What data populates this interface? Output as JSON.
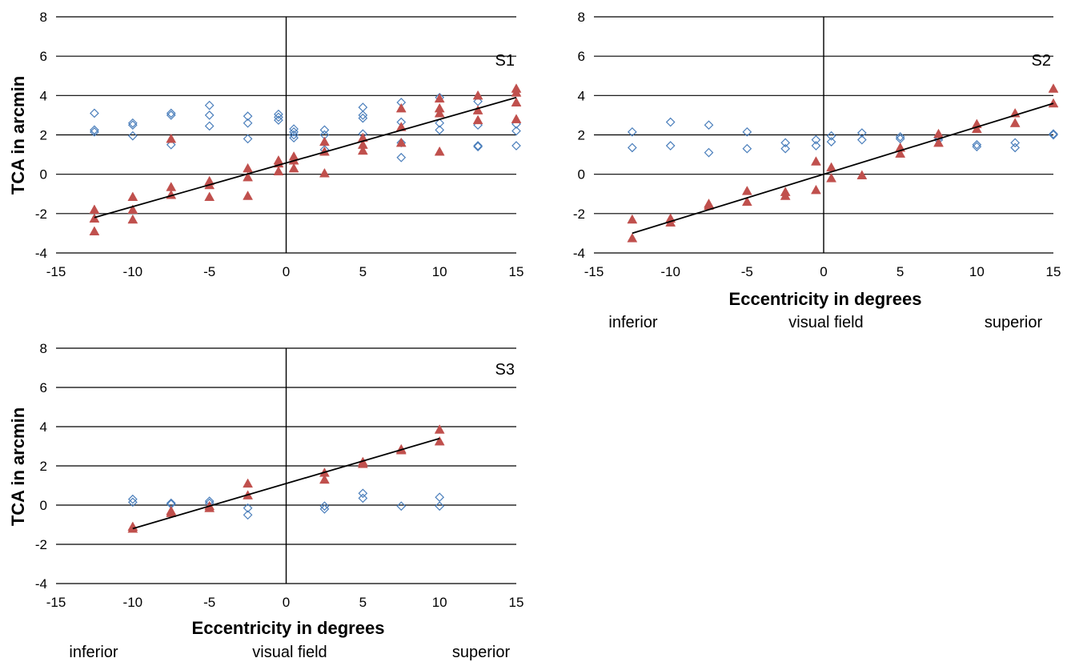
{
  "chart_data": [
    {
      "type": "scatter",
      "panel_label": "S1",
      "ylabel": "TCA in arcmin",
      "xlabel": "",
      "field_labels": [
        "",
        "",
        ""
      ],
      "xlim": [
        -15,
        15
      ],
      "ylim": [
        -4,
        8
      ],
      "x_ticks": [
        -15,
        -10,
        -5,
        0,
        5,
        10,
        15
      ],
      "y_ticks": [
        -4,
        -2,
        0,
        2,
        4,
        6,
        8
      ],
      "grid": "horizontal",
      "colors": {
        "series_open": "#4a7ebb",
        "series_filled": "#c0504d",
        "fit": "#000000"
      },
      "series": [
        {
          "marker": "diamond-open",
          "color": "#4a7ebb",
          "points": [
            [
              -12.5,
              3.1
            ],
            [
              -12.5,
              2.25
            ],
            [
              -12.5,
              2.15
            ],
            [
              -10,
              2.6
            ],
            [
              -10,
              2.5
            ],
            [
              -10,
              1.95
            ],
            [
              -7.5,
              3.1
            ],
            [
              -7.5,
              3.0
            ],
            [
              -7.5,
              1.5
            ],
            [
              -5,
              3.5
            ],
            [
              -5,
              3.0
            ],
            [
              -5,
              2.45
            ],
            [
              -2.5,
              2.95
            ],
            [
              -2.5,
              2.6
            ],
            [
              -2.5,
              1.8
            ],
            [
              -0.5,
              3.05
            ],
            [
              -0.5,
              2.9
            ],
            [
              -0.5,
              2.75
            ],
            [
              0.5,
              2.3
            ],
            [
              0.5,
              2.15
            ],
            [
              0.5,
              2.0
            ],
            [
              0.5,
              1.85
            ],
            [
              2.5,
              2.25
            ],
            [
              2.5,
              2.0
            ],
            [
              2.5,
              1.25
            ],
            [
              5,
              3.4
            ],
            [
              5,
              3.0
            ],
            [
              5,
              2.85
            ],
            [
              5,
              2.05
            ],
            [
              7.5,
              3.65
            ],
            [
              7.5,
              2.65
            ],
            [
              7.5,
              1.6
            ],
            [
              7.5,
              0.85
            ],
            [
              10,
              3.9
            ],
            [
              10,
              2.6
            ],
            [
              10,
              2.25
            ],
            [
              12.5,
              3.7
            ],
            [
              12.5,
              2.5
            ],
            [
              12.5,
              1.45
            ],
            [
              12.5,
              1.4
            ],
            [
              15,
              2.55
            ],
            [
              15,
              2.2
            ],
            [
              15,
              1.45
            ]
          ]
        },
        {
          "marker": "triangle-filled",
          "color": "#c0504d",
          "points": [
            [
              -12.5,
              -1.8
            ],
            [
              -12.5,
              -2.25
            ],
            [
              -12.5,
              -2.9
            ],
            [
              -10,
              -1.15
            ],
            [
              -10,
              -1.8
            ],
            [
              -10,
              -2.3
            ],
            [
              -7.5,
              1.8
            ],
            [
              -7.5,
              -0.65
            ],
            [
              -7.5,
              -1.05
            ],
            [
              -5,
              -0.35
            ],
            [
              -5,
              -0.55
            ],
            [
              -5,
              -1.15
            ],
            [
              -2.5,
              0.3
            ],
            [
              -2.5,
              -0.15
            ],
            [
              -2.5,
              -1.1
            ],
            [
              -0.5,
              0.7
            ],
            [
              -0.5,
              0.55
            ],
            [
              -0.5,
              0.15
            ],
            [
              0.5,
              0.9
            ],
            [
              0.5,
              0.7
            ],
            [
              0.5,
              0.3
            ],
            [
              2.5,
              1.65
            ],
            [
              2.5,
              1.15
            ],
            [
              2.5,
              0.05
            ],
            [
              5,
              1.85
            ],
            [
              5,
              1.5
            ],
            [
              5,
              1.2
            ],
            [
              7.5,
              3.35
            ],
            [
              7.5,
              2.4
            ],
            [
              7.5,
              1.6
            ],
            [
              10,
              3.85
            ],
            [
              10,
              3.35
            ],
            [
              10,
              3.1
            ],
            [
              10,
              1.15
            ],
            [
              12.5,
              4.0
            ],
            [
              12.5,
              3.25
            ],
            [
              12.5,
              2.75
            ],
            [
              15,
              4.35
            ],
            [
              15,
              4.15
            ],
            [
              15,
              3.65
            ],
            [
              15,
              2.8
            ]
          ]
        }
      ],
      "fit_line": [
        [
          -12.5,
          -2.2
        ],
        [
          15,
          3.9
        ]
      ]
    },
    {
      "type": "scatter",
      "panel_label": "S2",
      "ylabel": "",
      "xlabel": "Eccentricity in degrees",
      "field_labels": [
        "inferior",
        "visual field",
        "superior"
      ],
      "xlim": [
        -15,
        15
      ],
      "ylim": [
        -4,
        8
      ],
      "x_ticks": [
        -15,
        -10,
        -5,
        0,
        5,
        10,
        15
      ],
      "y_ticks": [
        -4,
        -2,
        0,
        2,
        4,
        6,
        8
      ],
      "grid": "horizontal",
      "colors": {
        "series_open": "#4a7ebb",
        "series_filled": "#c0504d",
        "fit": "#000000"
      },
      "series": [
        {
          "marker": "diamond-open",
          "color": "#4a7ebb",
          "points": [
            [
              -12.5,
              2.15
            ],
            [
              -12.5,
              1.35
            ],
            [
              -10,
              2.65
            ],
            [
              -10,
              1.45
            ],
            [
              -7.5,
              2.5
            ],
            [
              -7.5,
              1.1
            ],
            [
              -5,
              2.15
            ],
            [
              -5,
              1.3
            ],
            [
              -2.5,
              1.6
            ],
            [
              -2.5,
              1.3
            ],
            [
              -0.5,
              1.75
            ],
            [
              -0.5,
              1.45
            ],
            [
              0.5,
              1.95
            ],
            [
              0.5,
              1.65
            ],
            [
              2.5,
              2.1
            ],
            [
              2.5,
              1.75
            ],
            [
              5,
              1.9
            ],
            [
              5,
              1.8
            ],
            [
              7.5,
              1.85
            ],
            [
              7.5,
              1.75
            ],
            [
              10,
              1.5
            ],
            [
              10,
              1.4
            ],
            [
              12.5,
              1.6
            ],
            [
              12.5,
              1.35
            ],
            [
              15,
              2.05
            ],
            [
              15,
              2.0
            ]
          ]
        },
        {
          "marker": "triangle-filled",
          "color": "#c0504d",
          "points": [
            [
              -12.5,
              -2.3
            ],
            [
              -12.5,
              -3.25
            ],
            [
              -10,
              -2.25
            ],
            [
              -10,
              -2.45
            ],
            [
              -7.5,
              -1.5
            ],
            [
              -7.5,
              -1.6
            ],
            [
              -5,
              -0.85
            ],
            [
              -5,
              -1.4
            ],
            [
              -2.5,
              -0.9
            ],
            [
              -2.5,
              -1.1
            ],
            [
              -0.5,
              0.65
            ],
            [
              -0.5,
              -0.8
            ],
            [
              0.5,
              0.35
            ],
            [
              0.5,
              -0.2
            ],
            [
              2.5,
              -0.05
            ],
            [
              5,
              1.35
            ],
            [
              5,
              1.05
            ],
            [
              7.5,
              2.05
            ],
            [
              7.5,
              1.6
            ],
            [
              10,
              2.55
            ],
            [
              10,
              2.3
            ],
            [
              12.5,
              3.1
            ],
            [
              12.5,
              2.6
            ],
            [
              15,
              4.35
            ],
            [
              15,
              3.6
            ]
          ]
        }
      ],
      "fit_line": [
        [
          -12.5,
          -3.0
        ],
        [
          15,
          3.6
        ]
      ]
    },
    {
      "type": "scatter",
      "panel_label": "S3",
      "ylabel": "TCA in arcmin",
      "xlabel": "Eccentricity in degrees",
      "field_labels": [
        "inferior",
        "visual field",
        "superior"
      ],
      "xlim": [
        -15,
        15
      ],
      "ylim": [
        -4,
        8
      ],
      "x_ticks": [
        -15,
        -10,
        -5,
        0,
        5,
        10,
        15
      ],
      "y_ticks": [
        -4,
        -2,
        0,
        2,
        4,
        6,
        8
      ],
      "grid": "horizontal",
      "colors": {
        "series_open": "#4a7ebb",
        "series_filled": "#c0504d",
        "fit": "#000000"
      },
      "series": [
        {
          "marker": "diamond-open",
          "color": "#4a7ebb",
          "points": [
            [
              -10,
              0.3
            ],
            [
              -10,
              0.15
            ],
            [
              -7.5,
              0.1
            ],
            [
              -7.5,
              0.05
            ],
            [
              -5,
              0.2
            ],
            [
              -5,
              0.1
            ],
            [
              -2.5,
              -0.15
            ],
            [
              -2.5,
              -0.5
            ],
            [
              2.5,
              -0.05
            ],
            [
              2.5,
              -0.2
            ],
            [
              5,
              0.6
            ],
            [
              5,
              0.35
            ],
            [
              7.5,
              -0.05
            ],
            [
              10,
              0.4
            ],
            [
              10,
              -0.05
            ]
          ]
        },
        {
          "marker": "triangle-filled",
          "color": "#c0504d",
          "points": [
            [
              -10,
              -1.1
            ],
            [
              -10,
              -1.2
            ],
            [
              -7.5,
              -0.3
            ],
            [
              -7.5,
              -0.4
            ],
            [
              -5,
              -0.05
            ],
            [
              -5,
              -0.15
            ],
            [
              -2.5,
              1.1
            ],
            [
              -2.5,
              0.5
            ],
            [
              2.5,
              1.65
            ],
            [
              2.5,
              1.3
            ],
            [
              5,
              2.2
            ],
            [
              5,
              2.1
            ],
            [
              7.5,
              2.85
            ],
            [
              7.5,
              2.8
            ],
            [
              10,
              3.85
            ],
            [
              10,
              3.25
            ]
          ]
        }
      ],
      "fit_line": [
        [
          -10,
          -1.2
        ],
        [
          10,
          3.4
        ]
      ]
    }
  ]
}
